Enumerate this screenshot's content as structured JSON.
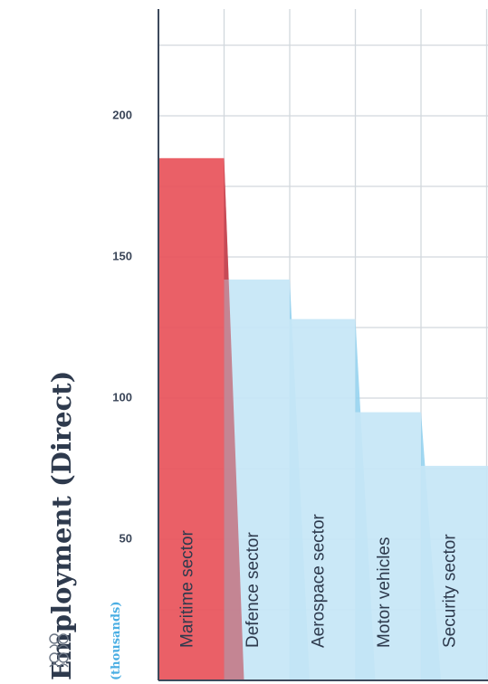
{
  "chart_data": {
    "type": "bar",
    "title": "",
    "ylabel": "Employment (Direct)",
    "yunit": "(thousands)",
    "categories": [
      "Maritime sector",
      "Defence sector",
      "Aerospace sector",
      "Motor vehicles",
      "Security sector"
    ],
    "values": [
      185,
      142,
      128,
      95,
      76
    ],
    "highlight_index": 0,
    "ylim": [
      0,
      240
    ],
    "yticks": [
      50,
      100,
      150,
      200
    ],
    "grid": true,
    "colors": {
      "highlight": "#e8525a",
      "bar": "#c5e6f6",
      "shadow": "#8fd0ef",
      "grid": "#d2d8dd",
      "axis": "#3d4a5c",
      "tick_text": "#3a4558",
      "bar_text": "#2e3a4d"
    }
  },
  "icons": {
    "axis_icon": "people-icon"
  }
}
